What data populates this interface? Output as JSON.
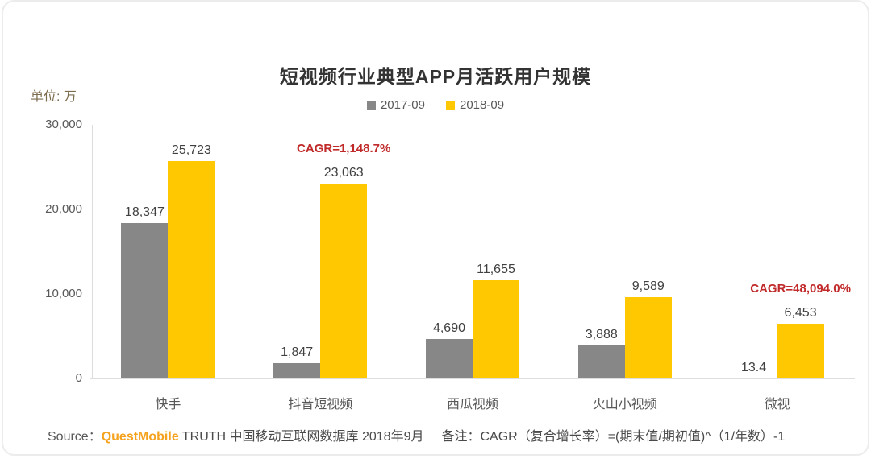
{
  "header": {
    "title": "短视频行业典型APP月活跃用户规模",
    "unit_label": "单位: 万"
  },
  "legend": {
    "items": [
      {
        "label": "2017-09",
        "color": "#878787"
      },
      {
        "label": "2018-09",
        "color": "#FFC800"
      }
    ]
  },
  "chart_data": {
    "type": "bar",
    "title": "短视频行业典型APP月活跃用户规模",
    "unit": "万",
    "categories": [
      "快手",
      "抖音短视频",
      "西瓜视频",
      "火山小视频",
      "微视"
    ],
    "series": [
      {
        "name": "2017-09",
        "color": "#878787",
        "values": [
          18347,
          1847,
          4690,
          3888,
          13.4
        ],
        "labels": [
          "18,347",
          "1,847",
          "4,690",
          "3,888",
          "13.4"
        ]
      },
      {
        "name": "2018-09",
        "color": "#FFC800",
        "values": [
          25723,
          23063,
          11655,
          9589,
          6453
        ],
        "labels": [
          "25,723",
          "23,063",
          "11,655",
          "9,589",
          "6,453"
        ]
      }
    ],
    "annotations": [
      {
        "category_index": 1,
        "series_index": 1,
        "text": "CAGR=1,148.7%",
        "color": "#C12A2A"
      },
      {
        "category_index": 4,
        "series_index": 1,
        "text": "CAGR=48,094.0%",
        "color": "#C12A2A"
      }
    ],
    "ylim": [
      0,
      30000
    ],
    "yticks": [
      {
        "value": 0,
        "label": "0"
      },
      {
        "value": 10000,
        "label": "10,000"
      },
      {
        "value": 20000,
        "label": "20,000"
      },
      {
        "value": 30000,
        "label": "30,000"
      }
    ],
    "grid": false,
    "legend_position": "top-center"
  },
  "footer": {
    "source_prefix": "Source：",
    "source_brand": "QuestMobile",
    "source_rest": " TRUTH 中国移动互联网数据库 2018年9月",
    "note": "备注：CAGR（复合增长率）=(期末值/期初值)^（1/年数）-1"
  },
  "colors": {
    "series_2017": "#878787",
    "series_2018": "#FFC800",
    "cagr_red": "#C12A2A",
    "brand_orange": "#F5A31E",
    "axis_text": "#595959",
    "value_text": "#404040"
  }
}
